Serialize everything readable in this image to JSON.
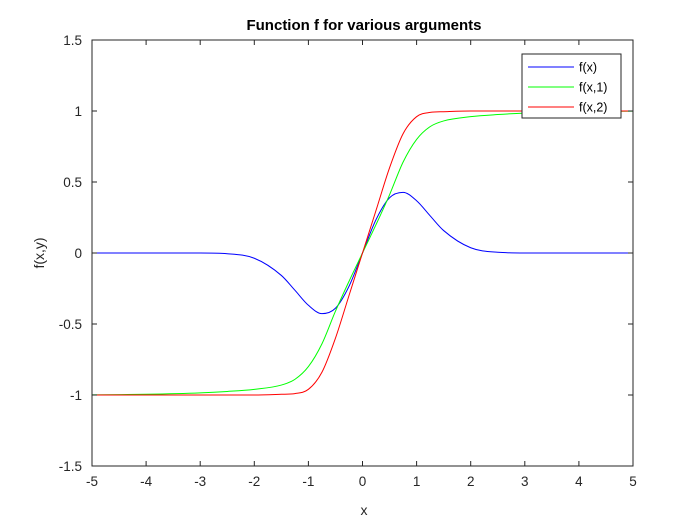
{
  "chart_data": {
    "type": "line",
    "title": "Function f for various arguments",
    "xlabel": "x",
    "ylabel": "f(x,y)",
    "xlim": [
      -5,
      5
    ],
    "ylim": [
      -1.5,
      1.5
    ],
    "x_ticks": [
      "-5",
      "-4",
      "-3",
      "-2",
      "-1",
      "0",
      "1",
      "2",
      "3",
      "4",
      "5"
    ],
    "y_ticks": [
      "1.5",
      "1",
      "0.5",
      "0",
      "-0.5",
      "-1",
      "-1.5"
    ],
    "grid": false,
    "legend_position": "top-right",
    "colors": {
      "f(x)": "#0000ff",
      "f(x,1)": "#00ff00",
      "f(x,2)": "#ff0000",
      "axes": "#262626"
    },
    "x": [
      -5,
      -4,
      -3,
      -2.5,
      -2,
      -1.5,
      -1.25,
      -1,
      -0.75,
      -0.5,
      -0.25,
      0,
      0.25,
      0.5,
      0.75,
      1,
      1.25,
      1.5,
      2,
      2.5,
      3,
      4,
      5
    ],
    "series": [
      {
        "name": "f(x)",
        "values": [
          0,
          0,
          0,
          -0.005,
          -0.037,
          -0.158,
          -0.262,
          -0.368,
          -0.427,
          -0.389,
          -0.235,
          0,
          0.235,
          0.389,
          0.427,
          0.368,
          0.262,
          0.158,
          0.037,
          0.005,
          0,
          0,
          0
        ]
      },
      {
        "name": "f(x,1)",
        "values": [
          -0.999,
          -0.995,
          -0.985,
          -0.975,
          -0.96,
          -0.93,
          -0.89,
          -0.8,
          -0.64,
          -0.41,
          -0.2,
          0,
          0.2,
          0.41,
          0.64,
          0.8,
          0.89,
          0.93,
          0.96,
          0.975,
          0.985,
          0.995,
          0.999
        ]
      },
      {
        "name": "f(x,2)",
        "values": [
          -1,
          -1,
          -1,
          -1,
          -1,
          -0.995,
          -0.99,
          -0.96,
          -0.84,
          -0.6,
          -0.3,
          0,
          0.3,
          0.6,
          0.84,
          0.96,
          0.99,
          0.995,
          1,
          1,
          1,
          1,
          1
        ]
      }
    ]
  }
}
